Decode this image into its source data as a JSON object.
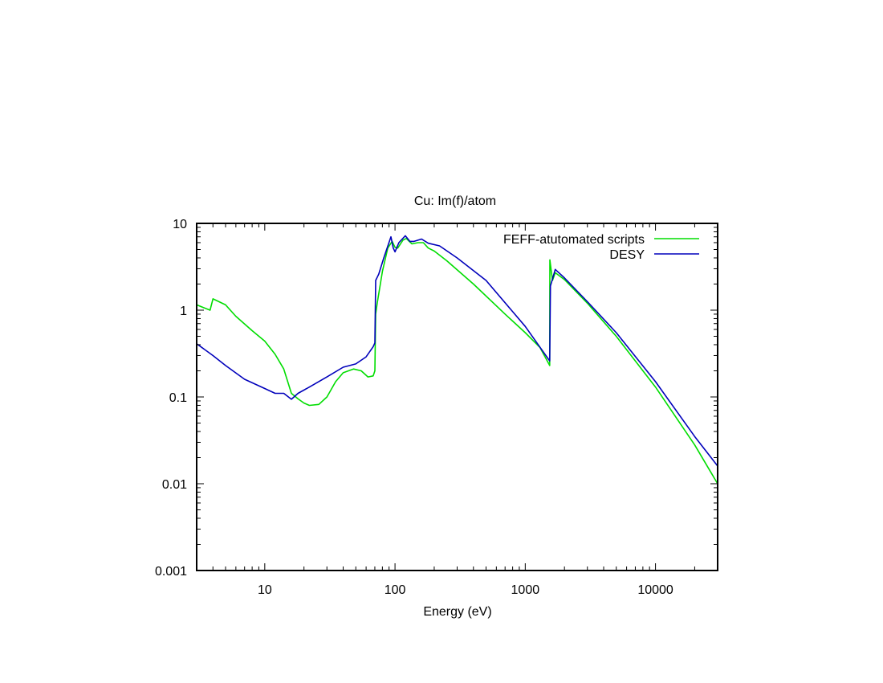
{
  "chart_data": {
    "type": "line",
    "title": "Cu: Im(f)/atom",
    "xlabel": "Energy (eV)",
    "ylabel": "",
    "xscale": "log",
    "yscale": "log",
    "xlim": [
      3,
      30000
    ],
    "ylim": [
      0.001,
      10
    ],
    "x_ticks": [
      10,
      100,
      1000,
      10000
    ],
    "x_tick_labels": [
      "10",
      "100",
      "1000",
      "10000"
    ],
    "y_ticks": [
      0.001,
      0.01,
      0.1,
      1,
      10
    ],
    "y_tick_labels": [
      "0.001",
      "0.01",
      "0.1",
      "1",
      "10"
    ],
    "grid": false,
    "legend_position": "top-right",
    "series": [
      {
        "name": "FEFF-atutomated scripts",
        "color": "#00dd00",
        "points": [
          [
            3,
            1.15
          ],
          [
            3.5,
            1.05
          ],
          [
            3.8,
            1.0
          ],
          [
            4.0,
            1.35
          ],
          [
            5,
            1.15
          ],
          [
            6,
            0.85
          ],
          [
            8,
            0.58
          ],
          [
            10,
            0.44
          ],
          [
            12,
            0.31
          ],
          [
            14,
            0.21
          ],
          [
            16,
            0.11
          ],
          [
            18,
            0.095
          ],
          [
            20,
            0.085
          ],
          [
            22,
            0.08
          ],
          [
            26,
            0.082
          ],
          [
            30,
            0.1
          ],
          [
            35,
            0.15
          ],
          [
            40,
            0.19
          ],
          [
            48,
            0.21
          ],
          [
            55,
            0.2
          ],
          [
            62,
            0.17
          ],
          [
            68,
            0.175
          ],
          [
            70,
            0.2
          ],
          [
            71,
            0.9
          ],
          [
            73,
            1.2
          ],
          [
            80,
            2.8
          ],
          [
            88,
            5.2
          ],
          [
            95,
            6.2
          ],
          [
            100,
            5.3
          ],
          [
            105,
            5.2
          ],
          [
            115,
            6.4
          ],
          [
            122,
            6.7
          ],
          [
            135,
            5.8
          ],
          [
            150,
            6.0
          ],
          [
            165,
            6.0
          ],
          [
            180,
            5.2
          ],
          [
            200,
            4.8
          ],
          [
            250,
            3.7
          ],
          [
            400,
            2.0
          ],
          [
            700,
            0.9
          ],
          [
            1000,
            0.55
          ],
          [
            1300,
            0.37
          ],
          [
            1540,
            0.23
          ],
          [
            1545,
            3.8
          ],
          [
            1580,
            2.9
          ],
          [
            1620,
            2.2
          ],
          [
            1700,
            2.7
          ],
          [
            2000,
            2.25
          ],
          [
            3000,
            1.2
          ],
          [
            5000,
            0.5
          ],
          [
            10000,
            0.13
          ],
          [
            20000,
            0.028
          ],
          [
            30000,
            0.01
          ]
        ]
      },
      {
        "name": "DESY",
        "color": "#0000bb",
        "points": [
          [
            3,
            0.41
          ],
          [
            4,
            0.3
          ],
          [
            5,
            0.23
          ],
          [
            7,
            0.16
          ],
          [
            10,
            0.125
          ],
          [
            12,
            0.11
          ],
          [
            14,
            0.11
          ],
          [
            16,
            0.094
          ],
          [
            18,
            0.11
          ],
          [
            22,
            0.13
          ],
          [
            30,
            0.17
          ],
          [
            40,
            0.22
          ],
          [
            50,
            0.24
          ],
          [
            60,
            0.29
          ],
          [
            68,
            0.38
          ],
          [
            70,
            0.42
          ],
          [
            71,
            2.2
          ],
          [
            75,
            2.6
          ],
          [
            82,
            4.0
          ],
          [
            93,
            7.0
          ],
          [
            97,
            5.2
          ],
          [
            100,
            4.7
          ],
          [
            107,
            6.0
          ],
          [
            120,
            7.2
          ],
          [
            130,
            6.2
          ],
          [
            140,
            6.2
          ],
          [
            160,
            6.6
          ],
          [
            180,
            5.9
          ],
          [
            220,
            5.5
          ],
          [
            300,
            4.0
          ],
          [
            500,
            2.2
          ],
          [
            1000,
            0.65
          ],
          [
            1540,
            0.26
          ],
          [
            1560,
            1.9
          ],
          [
            1700,
            2.95
          ],
          [
            2000,
            2.35
          ],
          [
            3000,
            1.25
          ],
          [
            5000,
            0.55
          ],
          [
            10000,
            0.15
          ],
          [
            20000,
            0.035
          ],
          [
            30000,
            0.016
          ]
        ]
      }
    ]
  }
}
